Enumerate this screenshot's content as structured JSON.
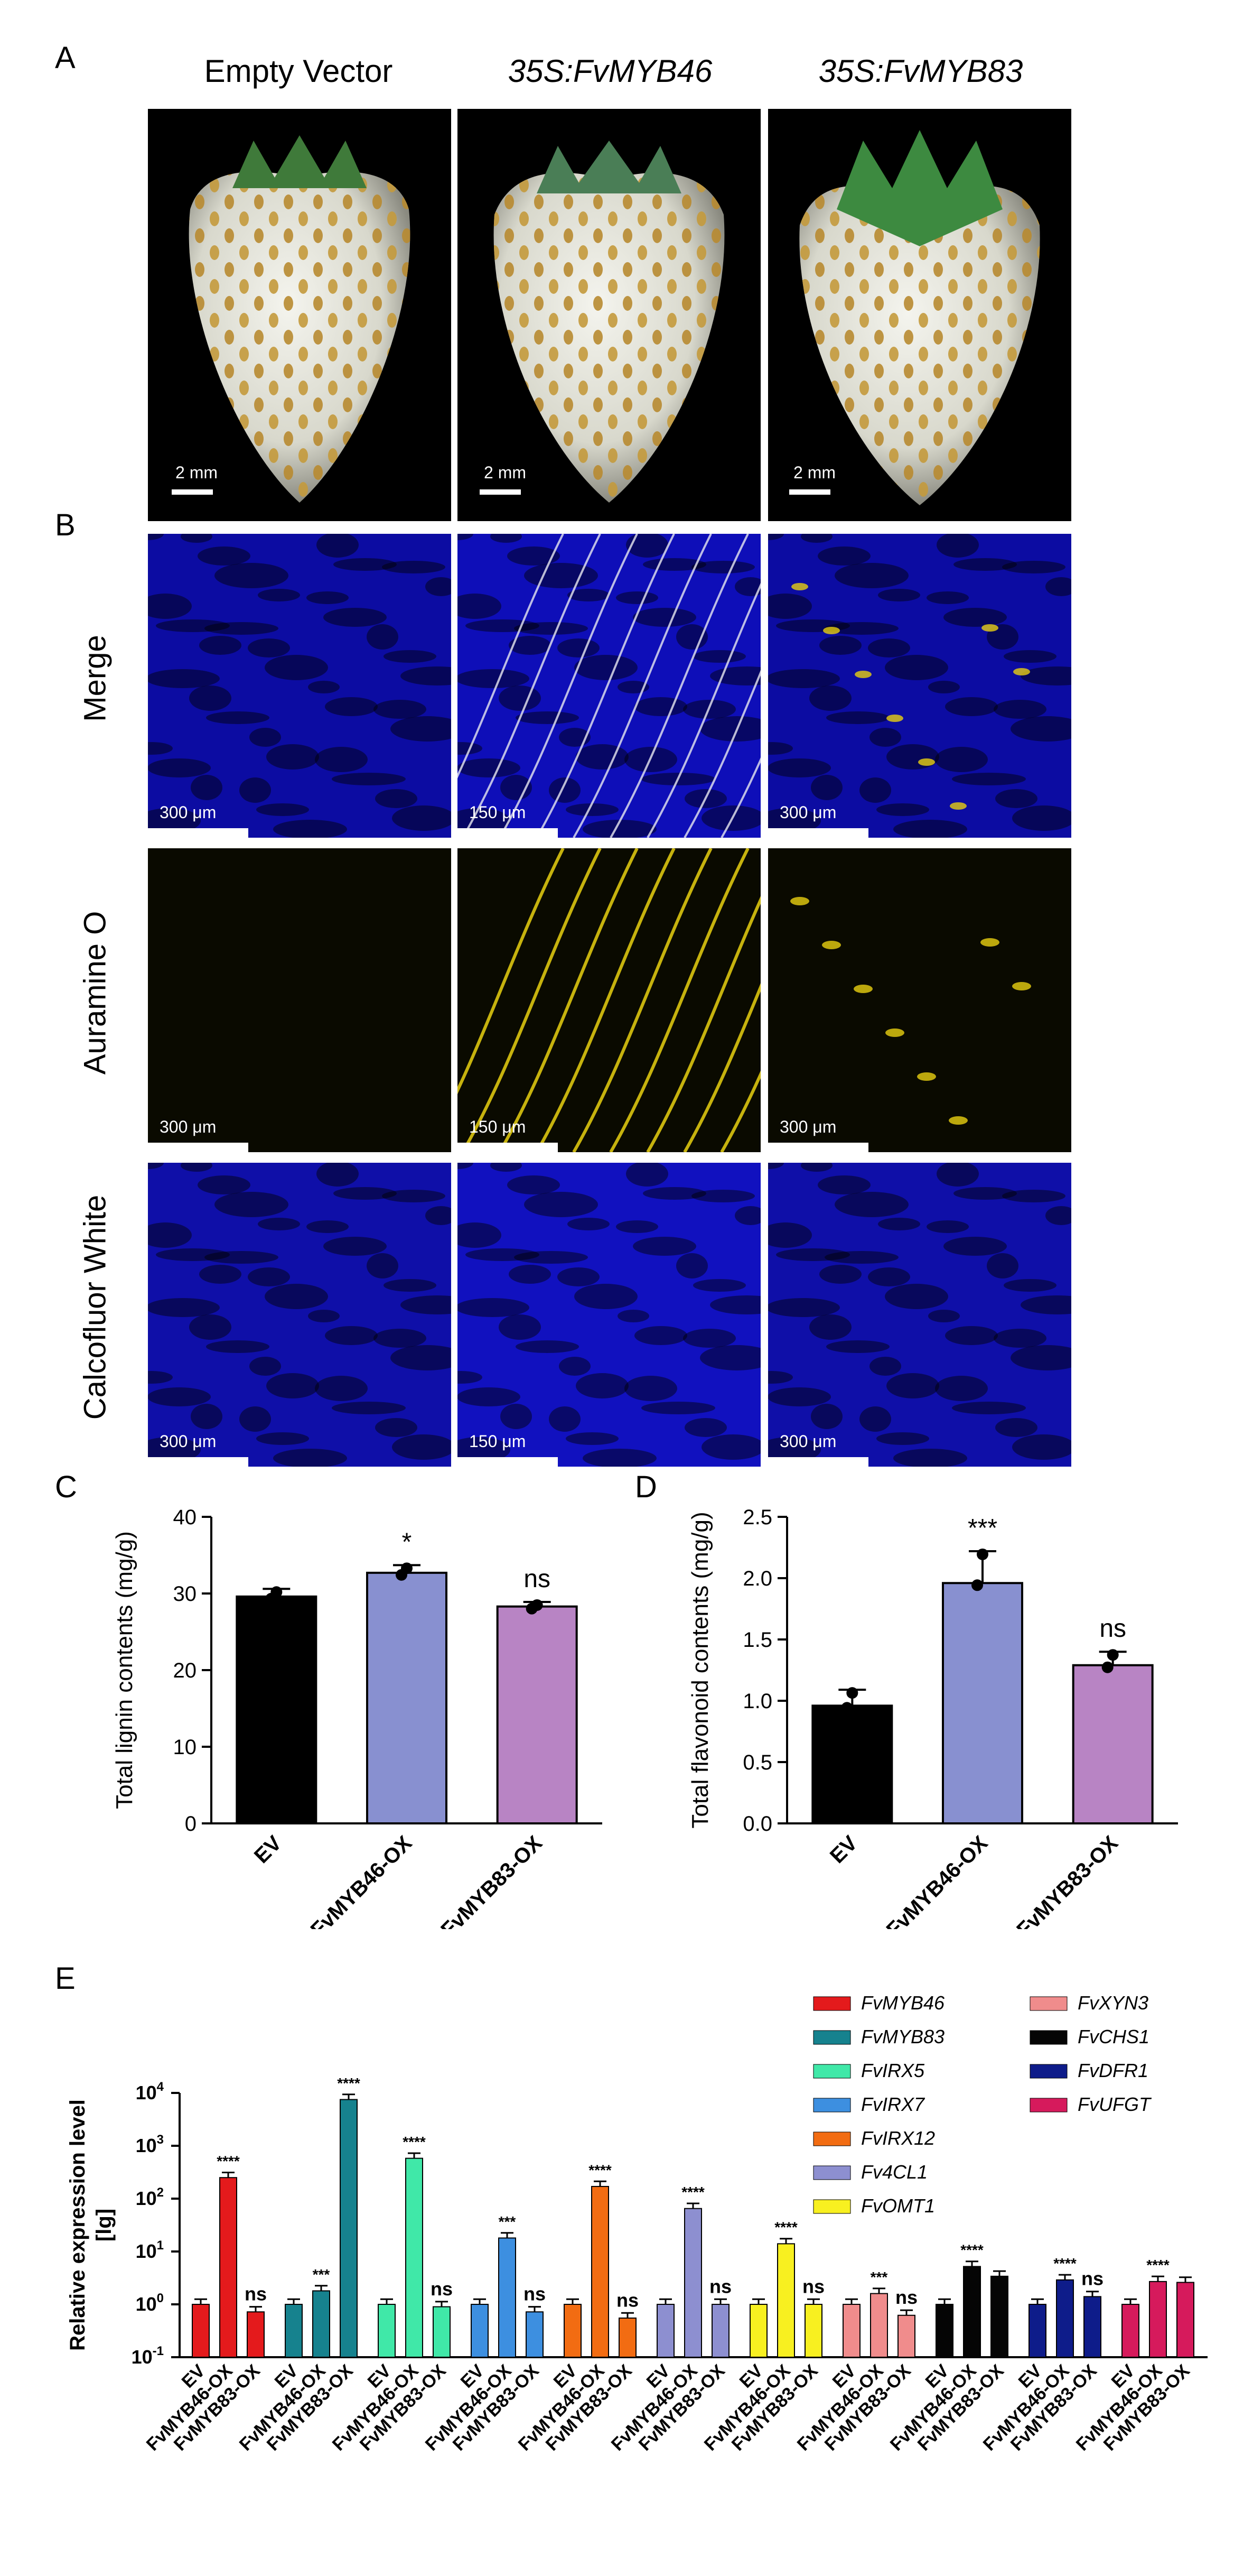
{
  "panel_a": {
    "letter": "A",
    "columns": [
      {
        "title": "Empty Vector",
        "scale": "2 mm"
      },
      {
        "title": "35S:FvMYB46",
        "scale": "2 mm"
      },
      {
        "title": "35S:FvMYB83",
        "scale": "2 mm"
      }
    ]
  },
  "panel_b": {
    "letter": "B",
    "rows": [
      {
        "label": "Merge",
        "scales": [
          "300 μm",
          "150 μm",
          "300 μm"
        ]
      },
      {
        "label": "Auramine O",
        "scales": [
          "300 μm",
          "150 μm",
          "300 μm"
        ]
      },
      {
        "label": "Calcofluor White",
        "scales": [
          "300 μm",
          "150 μm",
          "300 μm"
        ]
      }
    ],
    "colors": {
      "merge": "#1010d8",
      "auramine": "#e8d010",
      "calcofluor": "#1414e0"
    }
  },
  "chart_data": [
    {
      "panel": "C",
      "type": "bar",
      "ylabel": "Total lignin contents (mg/g)",
      "categories": [
        "EV",
        "FvMYB46-OX",
        "FvMYB83-OX"
      ],
      "values": [
        29.6,
        32.7,
        28.3
      ],
      "errors": [
        1.0,
        1.0,
        0.6
      ],
      "significance": [
        "",
        "*",
        "ns"
      ],
      "colors": [
        "#000000",
        "#8890d0",
        "#b884c4"
      ],
      "ylim": [
        0,
        40
      ],
      "yticks": [
        0,
        10,
        20,
        30,
        40
      ]
    },
    {
      "panel": "D",
      "type": "bar",
      "ylabel": "Total flavonoid contents (mg/g)",
      "categories": [
        "EV",
        "FvMYB46-OX",
        "FvMYB83-OX"
      ],
      "values": [
        0.96,
        1.96,
        1.29
      ],
      "errors": [
        0.13,
        0.26,
        0.11
      ],
      "significance": [
        "",
        "***",
        "ns"
      ],
      "colors": [
        "#000000",
        "#8890d0",
        "#b884c4"
      ],
      "ylim": [
        0,
        2.5
      ],
      "yticks": [
        "0.0",
        "0.5",
        "1.0",
        "1.5",
        "2.0",
        "2.5"
      ]
    },
    {
      "panel": "E",
      "type": "bar",
      "scale": "log",
      "ylabel": [
        "Relative expression level",
        "[lg]"
      ],
      "ylim": [
        0.1,
        10000
      ],
      "yticks": [
        {
          "base": "10",
          "exp": "4"
        },
        {
          "base": "10",
          "exp": "3"
        },
        {
          "base": "10",
          "exp": "2"
        },
        {
          "base": "10",
          "exp": "1"
        },
        {
          "base": "10",
          "exp": "0"
        },
        {
          "base": "10",
          "exp": "-1"
        }
      ],
      "categories": [
        "EV",
        "FvMYB46-OX",
        "FvMYB83-OX"
      ],
      "groups": [
        {
          "gene": "FvMYB46",
          "color": "#e41a1c",
          "values": [
            1.0,
            250,
            0.72
          ],
          "sig": [
            "",
            "****",
            "ns"
          ]
        },
        {
          "gene": "FvMYB83",
          "color": "#16828e",
          "values": [
            1.0,
            1.8,
            7500
          ],
          "sig": [
            "",
            "***",
            "****"
          ]
        },
        {
          "gene": "FvIRX5",
          "color": "#40e8a8",
          "values": [
            1.0,
            580,
            0.9
          ],
          "sig": [
            "",
            "****",
            "ns"
          ]
        },
        {
          "gene": "FvIRX7",
          "color": "#3d8fe0",
          "values": [
            1.0,
            18,
            0.72
          ],
          "sig": [
            "",
            "***",
            "ns"
          ]
        },
        {
          "gene": "FvIRX12",
          "color": "#f26c12",
          "values": [
            1.0,
            170,
            0.55
          ],
          "sig": [
            "",
            "****",
            "ns"
          ]
        },
        {
          "gene": "Fv4CL1",
          "color": "#8d8fd0",
          "values": [
            1.0,
            65,
            1.0
          ],
          "sig": [
            "",
            "****",
            "ns"
          ]
        },
        {
          "gene": "FvOMT1",
          "color": "#f8f020",
          "values": [
            1.0,
            14,
            1.0
          ],
          "sig": [
            "",
            "****",
            "ns"
          ]
        },
        {
          "gene": "FvXYN3",
          "color": "#f08c8c",
          "values": [
            1.0,
            1.6,
            0.62
          ],
          "sig": [
            "",
            "***",
            "ns"
          ]
        },
        {
          "gene": "FvCHS1",
          "color": "#050505",
          "values": [
            1.0,
            5.2,
            3.4
          ],
          "sig": [
            "",
            "****",
            ""
          ]
        },
        {
          "gene": "FvDFR1",
          "color": "#0e1c8a",
          "values": [
            1.0,
            2.9,
            1.4
          ],
          "sig": [
            "",
            "****",
            "ns"
          ]
        },
        {
          "gene": "FvUFGT",
          "color": "#d61a5c",
          "values": [
            1.0,
            2.7,
            2.6
          ],
          "sig": [
            "",
            "****",
            ""
          ]
        }
      ]
    }
  ]
}
